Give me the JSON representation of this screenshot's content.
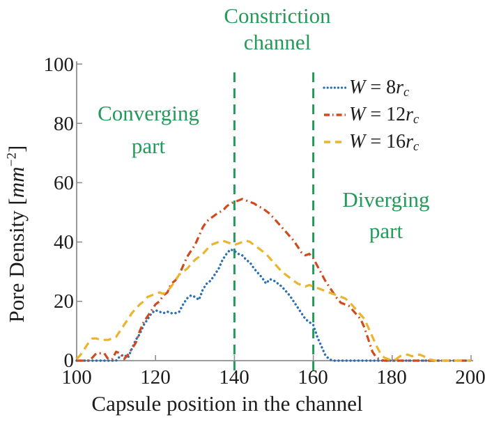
{
  "figure": {
    "background": "#ffffff",
    "annotation_color": "#239a59",
    "axis_color": "#8f8f8f",
    "text_color": "#1c1c1c"
  },
  "chart_data": {
    "type": "line",
    "title": "",
    "xlabel": "Capsule position in the channel",
    "ylabel": "Pore Density [mm−2]",
    "ylabel_parts": {
      "prefix": "Pore Density [",
      "unit": "mm",
      "exponent": "−2",
      "suffix": "]"
    },
    "xlim": [
      100,
      200
    ],
    "ylim": [
      0,
      100
    ],
    "xticks": [
      "100",
      "120",
      "140",
      "160",
      "180",
      "200"
    ],
    "yticks": [
      "0",
      "20",
      "40",
      "60",
      "80",
      "100"
    ],
    "grid": false,
    "legend_position": "top-right-inside",
    "vlines": {
      "x": [
        140,
        160
      ],
      "color": "#239a59",
      "style": "dashed"
    },
    "annotations": [
      {
        "lines": [
          "Constriction",
          "channel"
        ],
        "region": "top-center"
      },
      {
        "lines": [
          "Converging",
          "part"
        ],
        "region": "upper-left"
      },
      {
        "lines": [
          "Diverging",
          "part"
        ],
        "region": "right-middle"
      }
    ],
    "series": [
      {
        "name": "W = 8rc",
        "legend": {
          "var1": "W",
          "eq": " = ",
          "value": "8",
          "var2": "r",
          "sub": "c"
        },
        "color": "#2a6fb5",
        "style": "dotted",
        "x_start": 100,
        "x_step": 1,
        "x_end": 200,
        "values": [
          0,
          0,
          0,
          0,
          0,
          0,
          0,
          0,
          0,
          0,
          0,
          1.5,
          2,
          1,
          4,
          7,
          9,
          12,
          14,
          16,
          17,
          16.5,
          16,
          16.5,
          16,
          16,
          16.5,
          19,
          21,
          22,
          21.5,
          20.5,
          24,
          26,
          27,
          29,
          31,
          34,
          36,
          37.5,
          37,
          36,
          35.5,
          34,
          33,
          31,
          29.5,
          28,
          26,
          27.5,
          27,
          26,
          25,
          23.5,
          22,
          20,
          18,
          16,
          14,
          13,
          12,
          8,
          5,
          2,
          0.5,
          0,
          0,
          0,
          0,
          0,
          0,
          0,
          0,
          0,
          0,
          0,
          0,
          0,
          0,
          0,
          0,
          0,
          0,
          0,
          0,
          0,
          0,
          0,
          0,
          0,
          0,
          0,
          0,
          0,
          0,
          0,
          0,
          0,
          0,
          0,
          0
        ]
      },
      {
        "name": "W = 12rc",
        "legend": {
          "var1": "W",
          "eq": " = ",
          "value": "12",
          "var2": "r",
          "sub": "c"
        },
        "color": "#d14a1e",
        "style": "dashdot",
        "x_start": 100,
        "x_step": 1,
        "x_end": 200,
        "values": [
          0,
          0,
          0,
          0,
          1,
          2.5,
          2.5,
          2.5,
          0.5,
          0.5,
          3,
          2.5,
          0.5,
          2,
          4,
          6,
          10,
          13,
          15,
          17,
          19,
          20,
          22,
          23,
          26,
          27,
          29,
          32,
          35,
          37,
          39,
          42,
          45,
          47,
          48,
          49,
          50,
          50.5,
          52,
          53,
          53.5,
          54,
          54.5,
          54,
          53.5,
          53,
          52,
          51.5,
          50.5,
          49.5,
          48,
          46.5,
          45,
          43.5,
          42,
          40.5,
          38.5,
          36.5,
          35.5,
          36,
          34.5,
          32,
          29.5,
          27,
          25,
          23,
          21,
          19.5,
          19,
          18.5,
          17,
          15.5,
          14,
          11,
          7,
          3,
          1,
          0.3,
          0,
          0,
          0,
          0,
          0,
          0,
          0,
          0,
          0,
          0,
          0,
          0,
          0,
          0,
          0,
          0,
          0,
          0,
          0,
          0,
          0,
          0,
          0
        ]
      },
      {
        "name": "W = 16rc",
        "legend": {
          "var1": "W",
          "eq": " = ",
          "value": "16",
          "var2": "r",
          "sub": "c"
        },
        "color": "#ecb42c",
        "style": "dashed",
        "x_start": 100,
        "x_step": 1,
        "x_end": 200,
        "values": [
          0.5,
          2,
          4,
          6,
          7.5,
          7.5,
          7,
          7,
          7,
          7.5,
          8,
          10,
          12,
          14,
          16,
          17.5,
          19,
          20,
          21.5,
          22,
          22.5,
          23,
          22.5,
          23.5,
          25,
          27,
          29,
          30,
          31,
          32.5,
          34,
          35,
          36,
          37.5,
          39,
          39.5,
          40,
          40.5,
          40,
          39.5,
          39,
          39.5,
          40,
          40.5,
          40,
          39,
          38,
          37,
          36,
          34.5,
          33,
          31.5,
          30,
          29,
          28,
          27,
          26,
          25.5,
          25,
          25.5,
          25,
          24.5,
          24,
          23.5,
          23,
          22.5,
          22,
          21.5,
          21,
          20,
          18.5,
          17,
          15.5,
          14,
          11,
          8,
          5,
          2.5,
          1,
          0.5,
          0.3,
          0.5,
          1.5,
          2,
          2,
          1.5,
          2,
          2,
          1.5,
          0.5,
          0.3,
          0,
          0,
          0,
          0,
          0,
          0,
          0,
          0,
          0,
          0
        ]
      }
    ]
  }
}
